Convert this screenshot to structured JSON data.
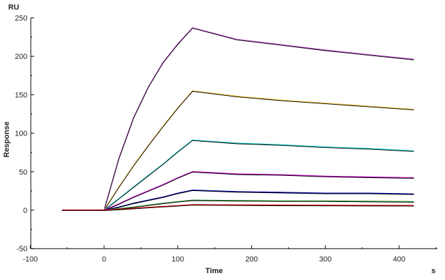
{
  "chart_data": {
    "type": "line",
    "title": "",
    "xlabel": "Time",
    "ylabel": "Response",
    "x_unit": "s",
    "y_unit": "RU",
    "xlim": [
      -100,
      450
    ],
    "ylim": [
      -50,
      250
    ],
    "x_ticks": [
      -100,
      0,
      100,
      200,
      300,
      400
    ],
    "y_ticks": [
      -50,
      0,
      50,
      100,
      150,
      200,
      250
    ],
    "grid": false,
    "legend": "none",
    "fit_color": "#000000",
    "x": [
      -57,
      0,
      20,
      40,
      60,
      80,
      100,
      120,
      180,
      240,
      300,
      360,
      420
    ],
    "series": [
      {
        "color": "#c050d0",
        "values": [
          0,
          0,
          67,
          120,
          160,
          192,
          216,
          237,
          222,
          215,
          208,
          202,
          196
        ]
      },
      {
        "color": "#f0c040",
        "values": [
          0,
          0,
          30,
          58,
          84,
          109,
          133,
          155,
          148,
          143,
          139,
          135,
          131
        ]
      },
      {
        "color": "#20c8c8",
        "values": [
          0,
          0,
          15,
          30,
          45,
          60,
          76,
          91,
          87,
          85,
          82,
          80,
          77
        ]
      },
      {
        "color": "#c000c0",
        "values": [
          0,
          0,
          8,
          17,
          25,
          33,
          42,
          50,
          47,
          46,
          44,
          43,
          42
        ]
      },
      {
        "color": "#0000a0",
        "values": [
          0,
          0,
          4,
          9,
          13,
          17,
          22,
          26,
          24,
          23,
          22,
          22,
          21
        ]
      },
      {
        "color": "#40a040",
        "values": [
          0,
          0,
          2,
          4,
          6.5,
          9,
          11,
          13,
          12.5,
          12,
          12,
          11.5,
          11
        ]
      },
      {
        "color": "#e00000",
        "values": [
          0,
          0,
          1,
          2.3,
          3.5,
          4.7,
          5.8,
          7,
          6.8,
          6.5,
          6.3,
          6.1,
          6
        ]
      }
    ]
  }
}
